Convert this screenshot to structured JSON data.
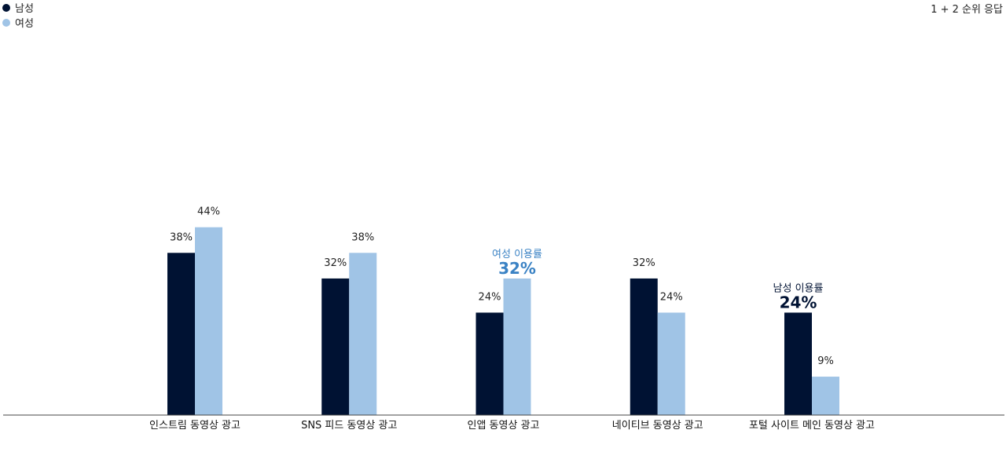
{
  "chart_data": {
    "type": "bar",
    "note": "1 + 2 순위 응답",
    "legend_position": "top-left",
    "grid": false,
    "ylim": [
      0,
      100
    ],
    "categories": [
      "인스트림 동영상 광고",
      "SNS 피드 동영상 광고",
      "인앱 동영상 광고",
      "네이티브 동영상 광고",
      "포털 사이트 메인 동영상 광고"
    ],
    "series": [
      {
        "name": "남성",
        "color": "#001233",
        "values": [
          38,
          32,
          24,
          32,
          24
        ],
        "labels": [
          "38%",
          "32%",
          "24%",
          "32%",
          "24%"
        ]
      },
      {
        "name": "여성",
        "color": "#a0c4e6",
        "values": [
          44,
          38,
          32,
          24,
          9
        ],
        "labels": [
          "44%",
          "38%",
          "32%",
          "24%",
          "9%"
        ]
      }
    ],
    "highlights": [
      {
        "series": 1,
        "category": 2,
        "title": "여성 이용률",
        "value": "32%",
        "color": "#3a82c4"
      },
      {
        "series": 0,
        "category": 4,
        "title": "남성 이용률",
        "value": "24%",
        "color": "#001233"
      }
    ]
  }
}
